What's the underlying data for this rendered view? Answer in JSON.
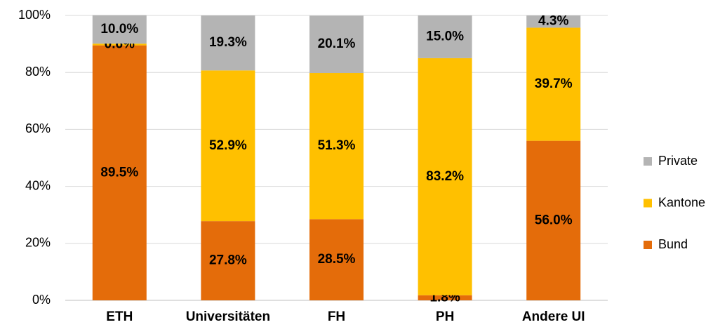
{
  "chart_data": {
    "type": "stacked_bar",
    "categories": [
      "ETH",
      "Universitäten",
      "FH",
      "PH",
      "Andere UI"
    ],
    "series": [
      {
        "name": "Bund",
        "color": "#e46c0a",
        "values": [
          89.5,
          27.8,
          28.5,
          1.8,
          56.0
        ],
        "value_labels": [
          "89.5%",
          "27.8%",
          "28.5%",
          "1.8%",
          "56.0%"
        ]
      },
      {
        "name": "Kantone",
        "color": "#ffc000",
        "values": [
          0.6,
          52.9,
          51.3,
          83.2,
          39.7
        ],
        "value_labels": [
          "0.6%",
          "52.9%",
          "51.3%",
          "83.2%",
          "39.7%"
        ]
      },
      {
        "name": "Private",
        "color": "#b4b4b4",
        "values": [
          10.0,
          19.3,
          20.1,
          15.0,
          4.3
        ],
        "value_labels": [
          "10.0%",
          "19.3%",
          "20.1%",
          "15.0%",
          "4.3%"
        ]
      }
    ],
    "ylim": [
      0,
      100
    ],
    "yticks": [
      {
        "value": 0,
        "label": "0%"
      },
      {
        "value": 20,
        "label": "20%"
      },
      {
        "value": 40,
        "label": "40%"
      },
      {
        "value": 60,
        "label": "60%"
      },
      {
        "value": 80,
        "label": "80%"
      },
      {
        "value": 100,
        "label": "100%"
      }
    ],
    "grid": true,
    "legend": "right"
  }
}
